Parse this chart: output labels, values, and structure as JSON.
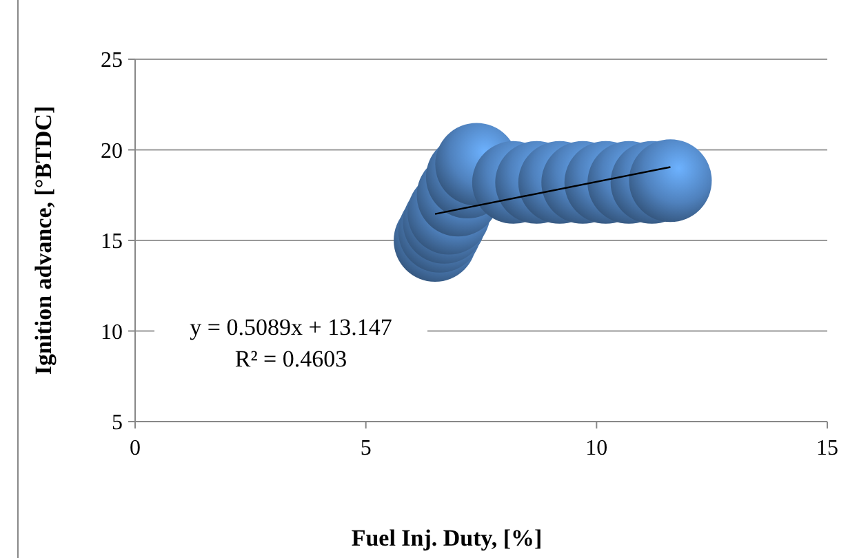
{
  "chart_data": {
    "type": "bubble",
    "xlabel": "Fuel Inj. Duty, [%]",
    "ylabel": "Ignition advance, [°BTDC]",
    "xlim": [
      0,
      15
    ],
    "xticks": [
      0,
      5,
      10,
      15
    ],
    "ylim": [
      5,
      25
    ],
    "yticks": [
      5,
      10,
      15,
      20,
      25
    ],
    "grid": "y",
    "series": [
      {
        "color": "#4f81bd",
        "x": [
          6.5,
          6.6,
          6.7,
          6.8,
          7.0,
          7.2,
          7.4,
          8.2,
          8.7,
          9.2,
          9.7,
          10.2,
          10.7,
          11.2,
          11.6
        ],
        "values": [
          15,
          15.5,
          16,
          16.5,
          17.5,
          18.5,
          19.2,
          18.2,
          18.2,
          18.2,
          18.2,
          18.2,
          18.2,
          18.2,
          18.3
        ],
        "sizes": [
          1,
          1,
          1,
          1,
          1,
          1,
          1,
          1,
          1,
          1,
          1,
          1,
          1,
          1,
          1
        ]
      },
      {
        "type": "line",
        "color": "#000000",
        "x": [
          6.5,
          11.6
        ],
        "values": [
          16.46,
          19.05
        ]
      }
    ],
    "annotations": [
      "y = 0.5089x + 13.147",
      "R² = 0.4603"
    ]
  }
}
